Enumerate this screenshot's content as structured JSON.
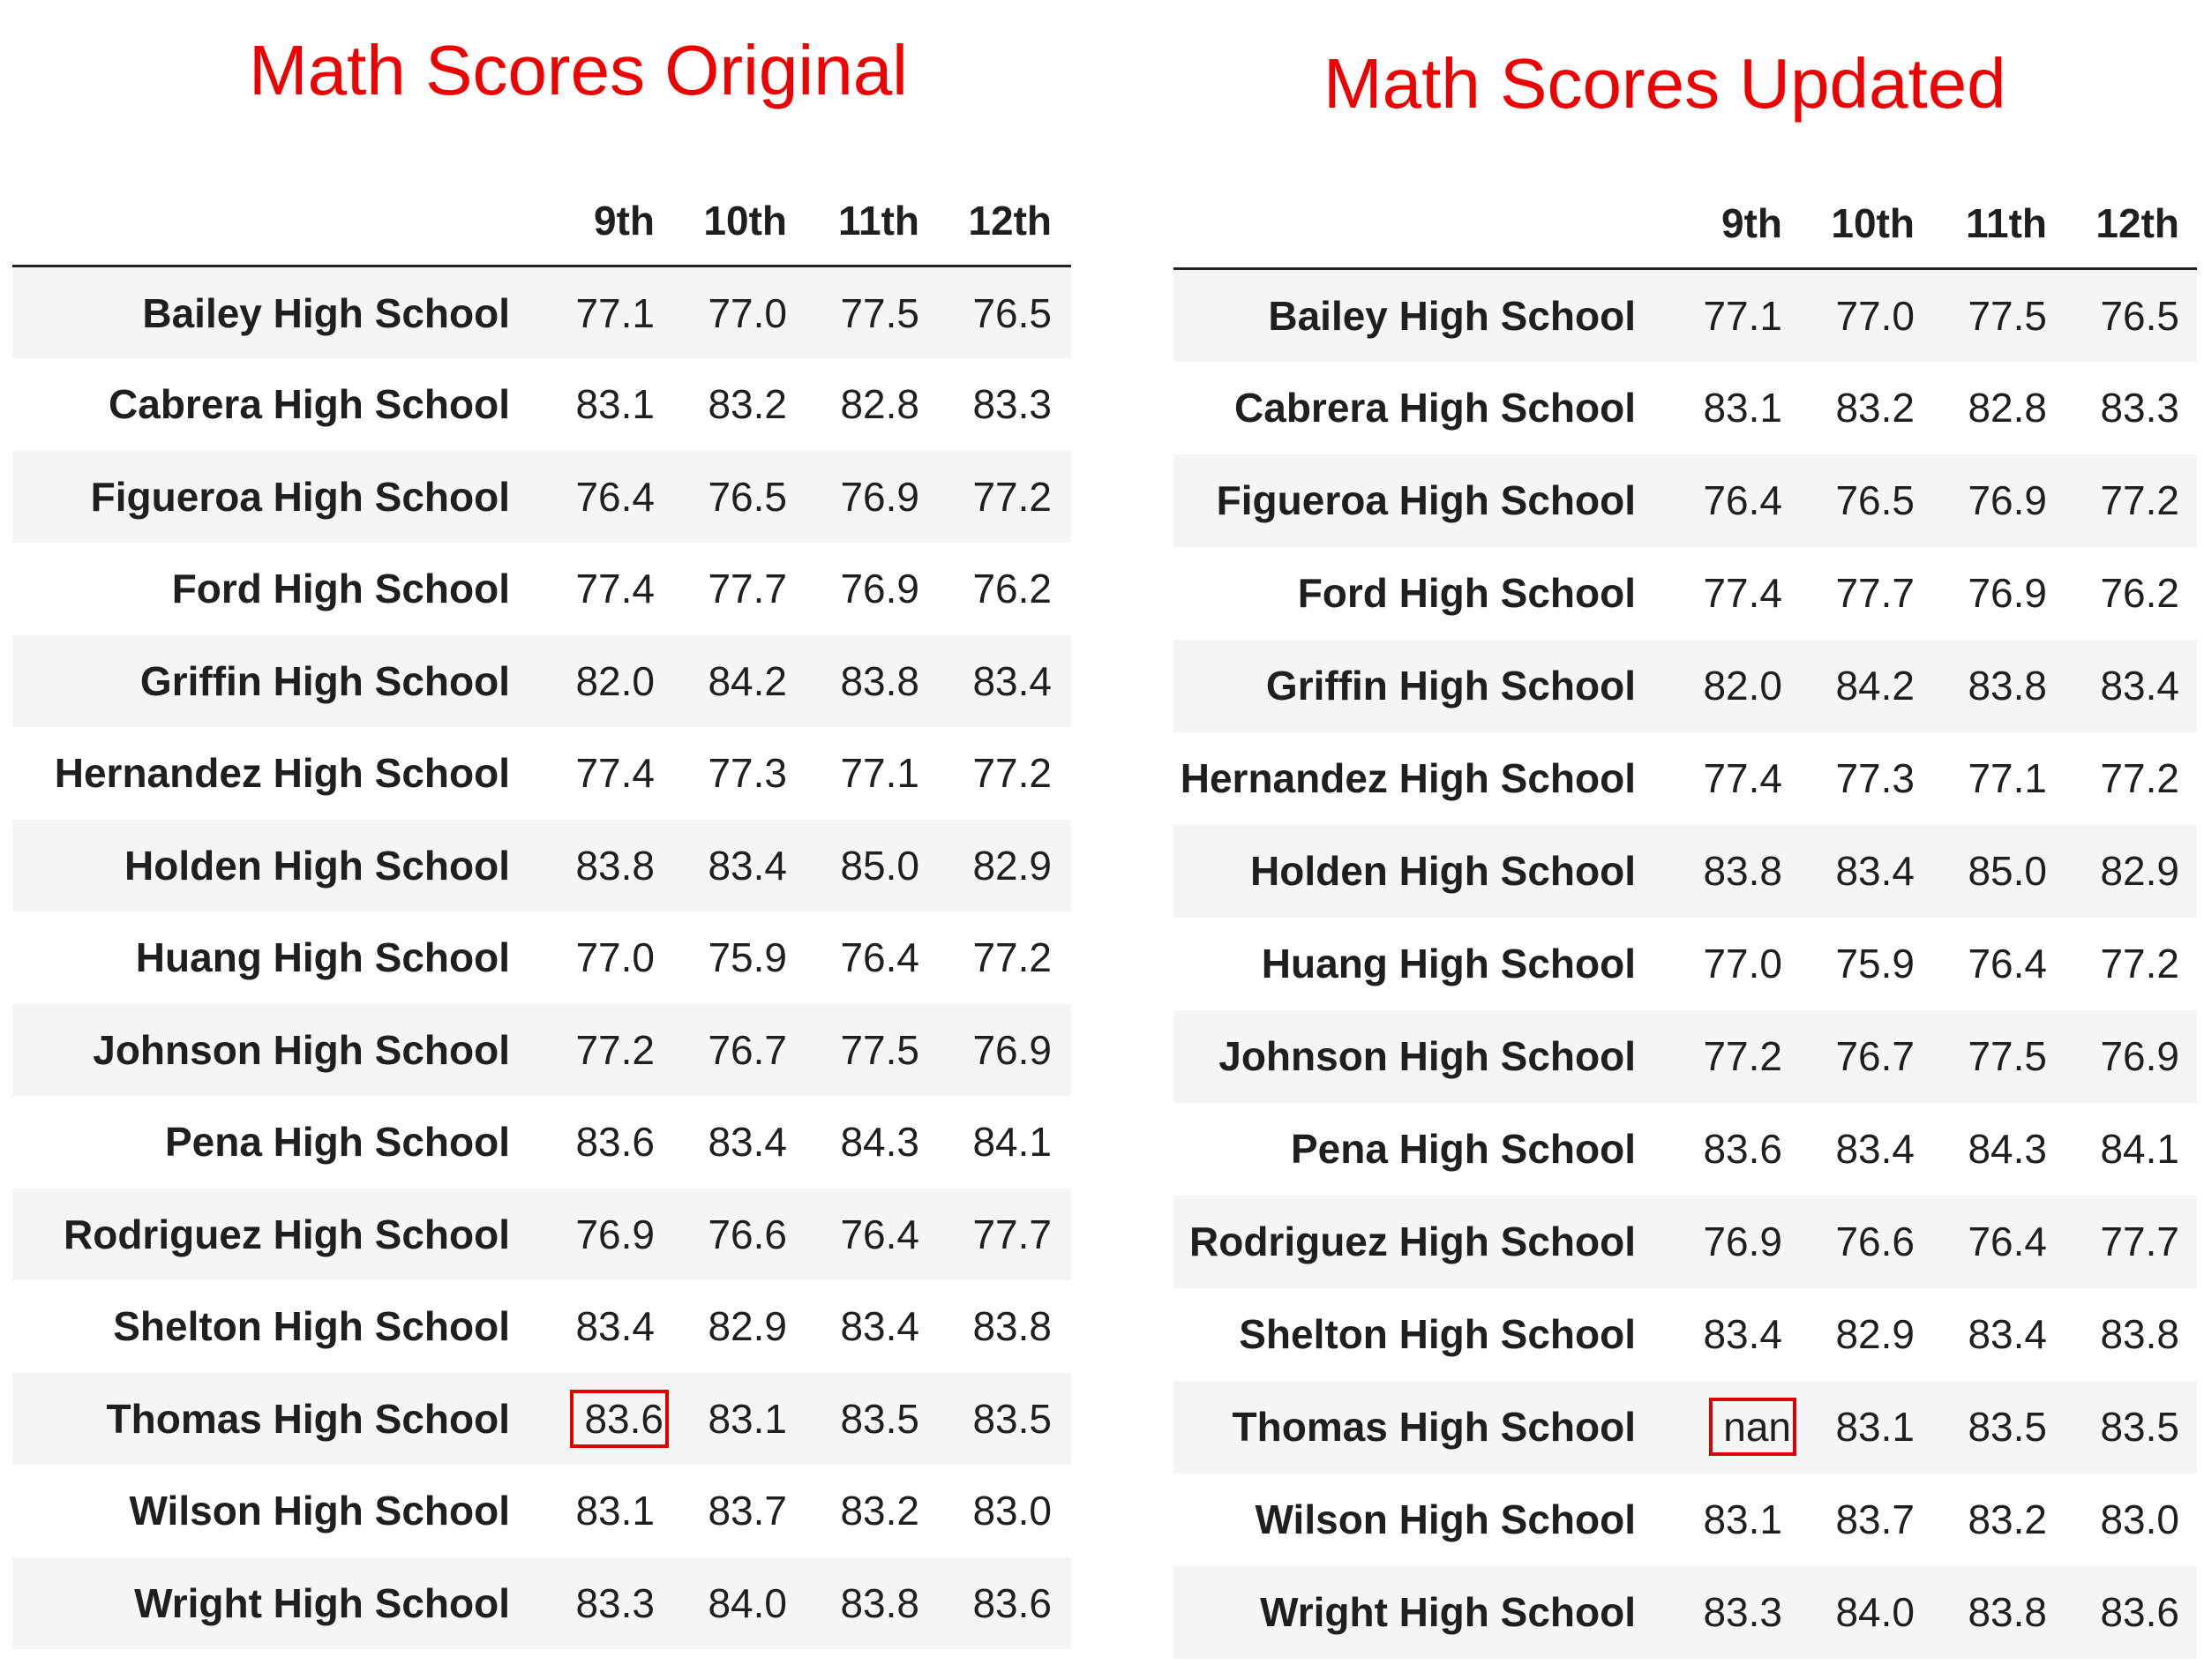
{
  "chart_data": [
    {
      "type": "table",
      "title": "Math Scores Original",
      "columns": [
        "9th",
        "10th",
        "11th",
        "12th"
      ],
      "rows": [
        {
          "school": "Bailey High School",
          "values": [
            "77.1",
            "77.0",
            "77.5",
            "76.5"
          ]
        },
        {
          "school": "Cabrera High School",
          "values": [
            "83.1",
            "83.2",
            "82.8",
            "83.3"
          ]
        },
        {
          "school": "Figueroa High School",
          "values": [
            "76.4",
            "76.5",
            "76.9",
            "77.2"
          ]
        },
        {
          "school": "Ford High School",
          "values": [
            "77.4",
            "77.7",
            "76.9",
            "76.2"
          ]
        },
        {
          "school": "Griffin High School",
          "values": [
            "82.0",
            "84.2",
            "83.8",
            "83.4"
          ]
        },
        {
          "school": "Hernandez High School",
          "values": [
            "77.4",
            "77.3",
            "77.1",
            "77.2"
          ]
        },
        {
          "school": "Holden High School",
          "values": [
            "83.8",
            "83.4",
            "85.0",
            "82.9"
          ]
        },
        {
          "school": "Huang High School",
          "values": [
            "77.0",
            "75.9",
            "76.4",
            "77.2"
          ]
        },
        {
          "school": "Johnson High School",
          "values": [
            "77.2",
            "76.7",
            "77.5",
            "76.9"
          ]
        },
        {
          "school": "Pena High School",
          "values": [
            "83.6",
            "83.4",
            "84.3",
            "84.1"
          ]
        },
        {
          "school": "Rodriguez High School",
          "values": [
            "76.9",
            "76.6",
            "76.4",
            "77.7"
          ]
        },
        {
          "school": "Shelton High School",
          "values": [
            "83.4",
            "82.9",
            "83.4",
            "83.8"
          ]
        },
        {
          "school": "Thomas High School",
          "values": [
            "83.6",
            "83.1",
            "83.5",
            "83.5"
          ]
        },
        {
          "school": "Wilson High School",
          "values": [
            "83.1",
            "83.7",
            "83.2",
            "83.0"
          ]
        },
        {
          "school": "Wright High School",
          "values": [
            "83.3",
            "84.0",
            "83.8",
            "83.6"
          ]
        }
      ],
      "highlight": {
        "row": 12,
        "col": 0,
        "color": "#e00000"
      }
    },
    {
      "type": "table",
      "title": "Math Scores Updated",
      "columns": [
        "9th",
        "10th",
        "11th",
        "12th"
      ],
      "rows": [
        {
          "school": "Bailey High School",
          "values": [
            "77.1",
            "77.0",
            "77.5",
            "76.5"
          ]
        },
        {
          "school": "Cabrera High School",
          "values": [
            "83.1",
            "83.2",
            "82.8",
            "83.3"
          ]
        },
        {
          "school": "Figueroa High School",
          "values": [
            "76.4",
            "76.5",
            "76.9",
            "77.2"
          ]
        },
        {
          "school": "Ford High School",
          "values": [
            "77.4",
            "77.7",
            "76.9",
            "76.2"
          ]
        },
        {
          "school": "Griffin High School",
          "values": [
            "82.0",
            "84.2",
            "83.8",
            "83.4"
          ]
        },
        {
          "school": "Hernandez High School",
          "values": [
            "77.4",
            "77.3",
            "77.1",
            "77.2"
          ]
        },
        {
          "school": "Holden High School",
          "values": [
            "83.8",
            "83.4",
            "85.0",
            "82.9"
          ]
        },
        {
          "school": "Huang High School",
          "values": [
            "77.0",
            "75.9",
            "76.4",
            "77.2"
          ]
        },
        {
          "school": "Johnson High School",
          "values": [
            "77.2",
            "76.7",
            "77.5",
            "76.9"
          ]
        },
        {
          "school": "Pena High School",
          "values": [
            "83.6",
            "83.4",
            "84.3",
            "84.1"
          ]
        },
        {
          "school": "Rodriguez High School",
          "values": [
            "76.9",
            "76.6",
            "76.4",
            "77.7"
          ]
        },
        {
          "school": "Shelton High School",
          "values": [
            "83.4",
            "82.9",
            "83.4",
            "83.8"
          ]
        },
        {
          "school": "Thomas High School",
          "values": [
            "nan",
            "83.1",
            "83.5",
            "83.5"
          ]
        },
        {
          "school": "Wilson High School",
          "values": [
            "83.1",
            "83.7",
            "83.2",
            "83.0"
          ]
        },
        {
          "school": "Wright High School",
          "values": [
            "83.3",
            "84.0",
            "83.8",
            "83.6"
          ]
        }
      ],
      "highlight": {
        "row": 12,
        "col": 0,
        "color": "#e00000"
      }
    }
  ]
}
